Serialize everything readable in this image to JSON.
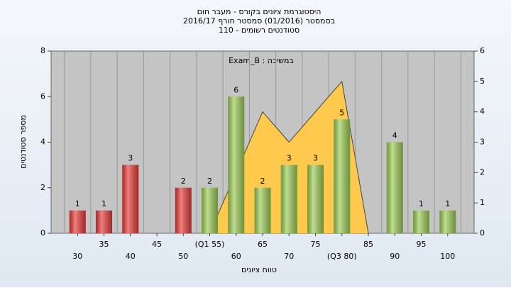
{
  "chart_data": {
    "type": "bar",
    "title": [
      "היסטוגרמת ציונים בקורס - מעבר חום",
      "בסמסטר  (01/2016)  סמסטר חורף 2016/17",
      "סטודנטים רשומים - 110"
    ],
    "annotation": "Exam_B : במשיכה",
    "xlabel": "טווח ציונים",
    "ylabel": "מספר סטודנטים",
    "x": [
      30,
      35,
      40,
      45,
      50,
      55,
      60,
      65,
      70,
      75,
      80,
      85,
      90,
      95,
      100
    ],
    "values": [
      1,
      1,
      3,
      null,
      2,
      2,
      6,
      2,
      3,
      3,
      5,
      null,
      4,
      1,
      1
    ],
    "bar_colors": [
      "#e83a3a",
      "#e83a3a",
      "#e83a3a",
      "#e83a3a",
      "#e83a3a",
      "#9ccc55",
      "#9ccc55",
      "#9ccc55",
      "#9ccc55",
      "#9ccc55",
      "#9ccc55",
      "#9ccc55",
      "#9ccc55",
      "#9ccc55",
      "#9ccc55"
    ],
    "area": {
      "x": [
        55,
        65,
        70,
        80,
        85
      ],
      "values": [
        0,
        4,
        3,
        5,
        0
      ],
      "color": "#ffc94d",
      "axis": "y2"
    },
    "xlim": [
      25,
      105
    ],
    "xticks": [
      30,
      35,
      40,
      45,
      50,
      {
        "value": 55,
        "label": "(Q1 55)"
      },
      60,
      65,
      70,
      75,
      {
        "value": 80,
        "label": "(Q3 80)"
      },
      85,
      90,
      95,
      100
    ],
    "ylim": [
      0,
      8
    ],
    "yticks": [
      0,
      2,
      4,
      6,
      8
    ],
    "y2lim": [
      0,
      6
    ],
    "y2ticks": [
      0,
      1,
      2,
      3,
      4,
      5,
      6
    ]
  }
}
